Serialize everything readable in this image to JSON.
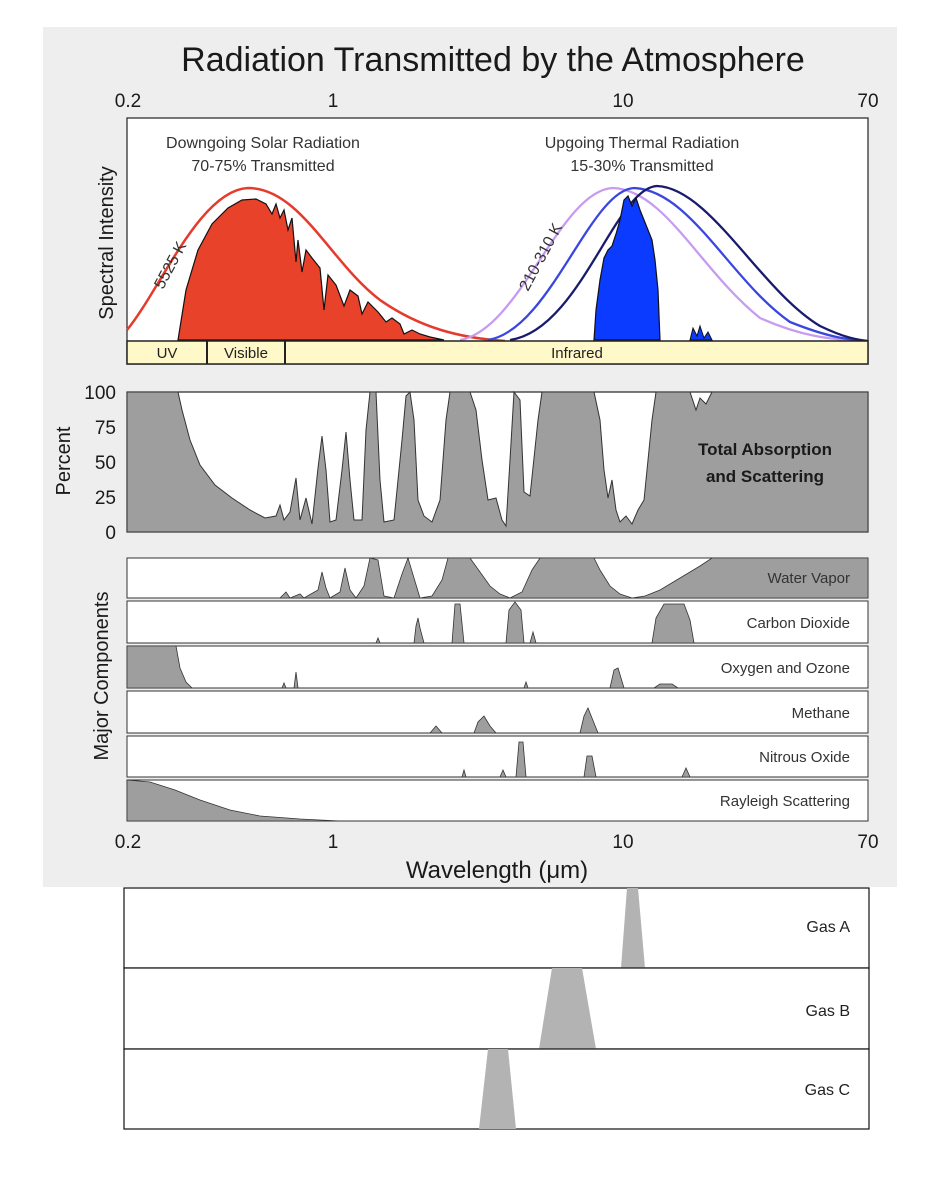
{
  "figure": {
    "title": "Radiation Transmitted by the Atmosphere",
    "x_axis_ticks": [
      "0.2",
      "1",
      "10",
      "70"
    ],
    "x_axis_title": "Wavelength (μm)",
    "spectral_panel": {
      "y_label": "Spectral Intensity",
      "solar_title_1": "Downgoing Solar Radiation",
      "solar_title_2": "70-75% Transmitted",
      "thermal_title_1": "Upgoing Thermal Radiation",
      "thermal_title_2": "15-30% Transmitted",
      "solar_curve_label": "5525 K",
      "thermal_curve_label": "210-310 K",
      "bands": [
        "UV",
        "Visible",
        "Infrared"
      ],
      "colors": {
        "solar_fill": "#e8432a",
        "solar_curve": "#e53b2c",
        "thermal_fill": "#0a3bff",
        "curve_light": "#c79cf0",
        "curve_mid": "#3a46e0",
        "curve_dark": "#1a1a6e"
      }
    },
    "absorption_panel": {
      "y_label": "Percent",
      "y_ticks": [
        "100",
        "75",
        "50",
        "25",
        "0"
      ],
      "label_1": "Total Absorption",
      "label_2": "and Scattering"
    },
    "components_panel": {
      "y_label": "Major Components",
      "components": [
        "Water Vapor",
        "Carbon Dioxide",
        "Oxygen and Ozone",
        "Methane",
        "Nitrous Oxide",
        "Rayleigh Scattering"
      ]
    }
  },
  "gas_panels": [
    "Gas A",
    "Gas B",
    "Gas C"
  ],
  "chart_data": {
    "type": "area",
    "x_scale": "log",
    "xlim": [
      0.2,
      70
    ],
    "ylim": [
      0,
      100
    ],
    "xlabel": "Wavelength (μm)",
    "series": [
      {
        "name": "Total Absorption and Scattering",
        "x": [
          0.2,
          0.3,
          0.4,
          0.5,
          0.7,
          0.93,
          1.13,
          1.4,
          1.87,
          2.7,
          3.5,
          4.3,
          6.0,
          8.0,
          9.6,
          11.0,
          14.0,
          20.0,
          70.0
        ],
        "values": [
          100,
          100,
          40,
          20,
          8,
          90,
          75,
          100,
          100,
          100,
          12,
          100,
          100,
          25,
          50,
          8,
          100,
          100,
          100
        ]
      }
    ],
    "gas_bands": [
      {
        "name": "Gas A",
        "center": 11,
        "range": [
          10.2,
          12.3
        ]
      },
      {
        "name": "Gas B",
        "center": 6.5,
        "range": [
          5.4,
          8.0
        ]
      },
      {
        "name": "Gas C",
        "center": 4.3,
        "range": [
          3.9,
          4.8
        ]
      }
    ]
  }
}
